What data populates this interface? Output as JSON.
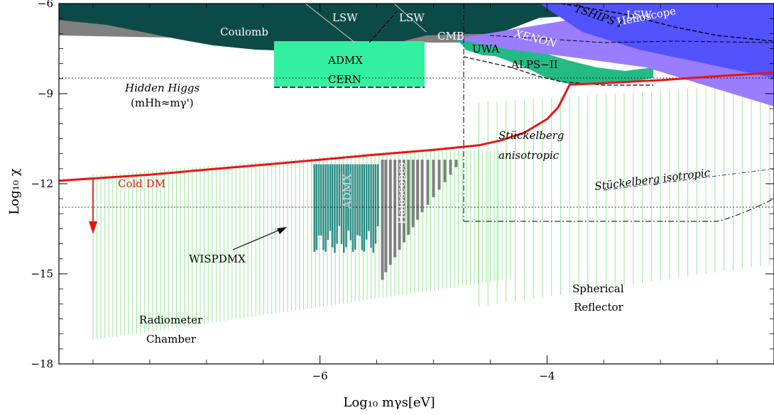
{
  "chart_data": {
    "type": "area",
    "title": "",
    "xlabel": "Log₁₀ mγs[eV]",
    "ylabel": "Log₁₀ χ",
    "xlim": [
      -8.3,
      -2.0
    ],
    "ylim": [
      -18,
      -6
    ],
    "x_ticks": [
      -6,
      -4
    ],
    "x_tick_labels": [
      "−6",
      "−4"
    ],
    "y_ticks": [
      -6,
      -9,
      -12,
      -15,
      -18
    ],
    "y_tick_labels": [
      "−6",
      "−9",
      "−12",
      "−15",
      "−18"
    ],
    "grid": false,
    "colors": {
      "excluded_dark": "#0c4a47",
      "gray": "#808080",
      "admx_cern": "#33f0a0",
      "helioscope": "#5252ff",
      "xenon": "#9a7cff",
      "alps": "#23ba86",
      "cold_dm": "#e81414",
      "wispdmx": "#2a8c85",
      "radiometer": "#9ae89a"
    },
    "series": [
      {
        "name": "Cold DM",
        "x": [
          -8.3,
          -7.5,
          -7.0,
          -6.5,
          -6.0,
          -5.5,
          -5.0,
          -4.6,
          -4.4,
          -4.2,
          -4.0,
          -3.9,
          -3.8,
          -3.5,
          -3.0,
          -2.5,
          -2.0
        ],
        "y": [
          -11.9,
          -11.7,
          -11.53,
          -11.37,
          -11.2,
          -11.03,
          -10.87,
          -10.72,
          -10.55,
          -10.3,
          -9.85,
          -9.45,
          -8.7,
          -8.65,
          -8.55,
          -8.42,
          -8.3
        ]
      }
    ],
    "regions": [
      {
        "name": "Coulomb",
        "x": [
          -8.3,
          -7.8,
          -7.3,
          -6.8,
          -6.3,
          -6.0,
          -5.7,
          -5.4,
          -5.1,
          -4.8,
          -4.7
        ],
        "y": [
          -7.0,
          -7.0,
          -7.05,
          -7.35,
          -7.55,
          -7.55,
          -7.45,
          -7.3,
          -7.15,
          -7.0,
          -6.9
        ]
      },
      {
        "name": "ADMX",
        "x_range": [
          -6.12,
          -4.85
        ],
        "y_range": [
          -8.85,
          -7.2
        ]
      },
      {
        "name": "Helioscope",
        "x_range": [
          -4.3,
          -2.0
        ],
        "y_range": [
          -9.5,
          -6.0
        ]
      },
      {
        "name": "Haloscopes",
        "x_range": [
          -5.45,
          -4.75
        ],
        "y_range": [
          -15.2,
          -11.4
        ]
      },
      {
        "name": "WISPDMX",
        "x_range": [
          -6.05,
          -5.5
        ],
        "y_range": [
          -14.3,
          -11.3
        ]
      }
    ],
    "reference_lines": [
      {
        "name": "Hidden Higgs",
        "y": -8.4
      },
      {
        "name": "",
        "y": -12.75
      }
    ],
    "annotations": {
      "coulomb": "Coulomb",
      "lsw1": "LSW",
      "lsw2": "LSW",
      "lsw3": "LSW",
      "admx": "ADMX",
      "cern": "CERN",
      "cmb": "CMB",
      "uwa": "UWA",
      "alps": "ALPS−II",
      "helioscope": "Helioscope",
      "tships": "TSHIPS I",
      "xenon": "XENON",
      "hidden_higgs": "Hidden Higgs",
      "hidden_higgs_condition": "(mHh≈mγ')",
      "cold_dm": "Cold DM",
      "stueckelberg_aniso_1": "Stückelberg",
      "stueckelberg_aniso_2": "anisotropic",
      "stueckelberg_iso": "Stückelberg isotropic",
      "admx_vertical": "ADMX",
      "haloscopes": "Haloscopes",
      "wispdmx": "WISPDMX",
      "spherical_1": "Spherical",
      "spherical_2": "Reflector",
      "radiometer_1": "Radiometer",
      "radiometer_2": "Chamber"
    }
  }
}
